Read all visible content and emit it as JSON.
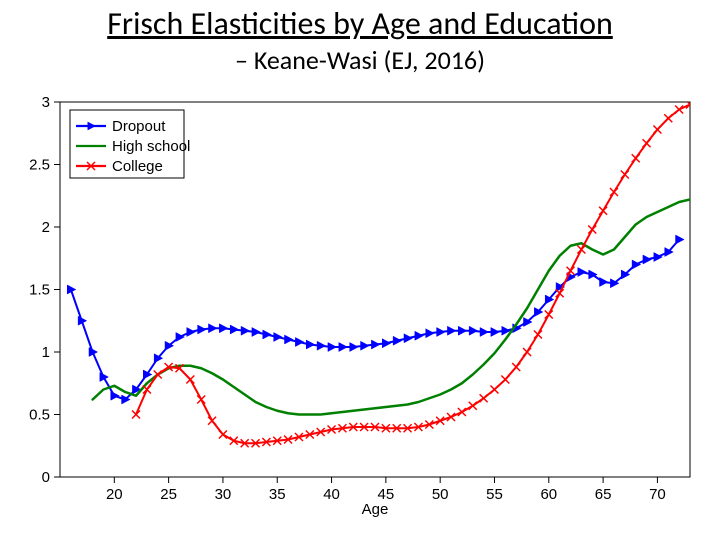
{
  "title": "Frisch Elasticities by Age and Education",
  "subtitle": "– Keane-Wasi (EJ, 2016)",
  "chart": {
    "type": "line",
    "background_color": "#ffffff",
    "axis_color": "#000000",
    "box_border": true,
    "xlabel": "Age",
    "label_fontsize": 15,
    "tick_fontsize": 15,
    "xlim": [
      15,
      73
    ],
    "xtick_start": 20,
    "xtick_step": 5,
    "xtick_end": 70,
    "ylim": [
      0,
      3
    ],
    "ytick_start": 0,
    "ytick_step": 0.5,
    "ytick_end": 3,
    "legend": {
      "position": "top-left",
      "border_color": "#000000",
      "background": "#ffffff",
      "items": [
        {
          "label": "Dropout",
          "color": "#0000ff",
          "marker": "triangle-right"
        },
        {
          "label": "High school",
          "color": "#008000",
          "marker": "none"
        },
        {
          "label": "College",
          "color": "#ff0000",
          "marker": "x"
        }
      ]
    },
    "series": [
      {
        "name": "Dropout",
        "color": "#0000ff",
        "line_width": 2,
        "marker": "triangle-right",
        "marker_size": 4.5,
        "x": [
          16,
          17,
          18,
          19,
          20,
          21,
          22,
          23,
          24,
          25,
          26,
          27,
          28,
          29,
          30,
          31,
          32,
          33,
          34,
          35,
          36,
          37,
          38,
          39,
          40,
          41,
          42,
          43,
          44,
          45,
          46,
          47,
          48,
          49,
          50,
          51,
          52,
          53,
          54,
          55,
          56,
          57,
          58,
          59,
          60,
          61,
          62,
          63,
          64,
          65,
          66,
          67,
          68,
          69,
          70,
          71,
          72
        ],
        "y": [
          1.5,
          1.25,
          1.0,
          0.8,
          0.65,
          0.62,
          0.7,
          0.82,
          0.95,
          1.05,
          1.12,
          1.16,
          1.18,
          1.19,
          1.19,
          1.18,
          1.17,
          1.16,
          1.14,
          1.12,
          1.1,
          1.08,
          1.06,
          1.05,
          1.04,
          1.04,
          1.04,
          1.05,
          1.06,
          1.07,
          1.09,
          1.11,
          1.13,
          1.15,
          1.16,
          1.17,
          1.17,
          1.17,
          1.16,
          1.16,
          1.17,
          1.19,
          1.24,
          1.32,
          1.42,
          1.52,
          1.6,
          1.64,
          1.62,
          1.56,
          1.55,
          1.62,
          1.7,
          1.74,
          1.76,
          1.8,
          1.9
        ]
      },
      {
        "name": "High school",
        "color": "#008000",
        "line_width": 2.5,
        "marker": "none",
        "marker_size": 0,
        "x": [
          18,
          19,
          20,
          21,
          22,
          23,
          24,
          25,
          26,
          27,
          28,
          29,
          30,
          31,
          32,
          33,
          34,
          35,
          36,
          37,
          38,
          39,
          40,
          41,
          42,
          43,
          44,
          45,
          46,
          47,
          48,
          49,
          50,
          51,
          52,
          53,
          54,
          55,
          56,
          57,
          58,
          59,
          60,
          61,
          62,
          63,
          64,
          65,
          66,
          67,
          68,
          69,
          70,
          71,
          72,
          73
        ],
        "y": [
          0.62,
          0.7,
          0.73,
          0.68,
          0.65,
          0.75,
          0.82,
          0.87,
          0.89,
          0.89,
          0.87,
          0.83,
          0.78,
          0.72,
          0.66,
          0.6,
          0.56,
          0.53,
          0.51,
          0.5,
          0.5,
          0.5,
          0.51,
          0.52,
          0.53,
          0.54,
          0.55,
          0.56,
          0.57,
          0.58,
          0.6,
          0.63,
          0.66,
          0.7,
          0.75,
          0.82,
          0.9,
          0.99,
          1.1,
          1.22,
          1.35,
          1.5,
          1.65,
          1.77,
          1.85,
          1.87,
          1.82,
          1.78,
          1.82,
          1.92,
          2.02,
          2.08,
          2.12,
          2.16,
          2.2,
          2.22
        ]
      },
      {
        "name": "College",
        "color": "#ff0000",
        "line_width": 2,
        "marker": "x",
        "marker_size": 4,
        "x": [
          22,
          23,
          24,
          25,
          26,
          27,
          28,
          29,
          30,
          31,
          32,
          33,
          34,
          35,
          36,
          37,
          38,
          39,
          40,
          41,
          42,
          43,
          44,
          45,
          46,
          47,
          48,
          49,
          50,
          51,
          52,
          53,
          54,
          55,
          56,
          57,
          58,
          59,
          60,
          61,
          62,
          63,
          64,
          65,
          66,
          67,
          68,
          69,
          70,
          71,
          72,
          73
        ],
        "y": [
          0.5,
          0.7,
          0.82,
          0.88,
          0.87,
          0.78,
          0.62,
          0.45,
          0.34,
          0.29,
          0.27,
          0.27,
          0.28,
          0.29,
          0.3,
          0.32,
          0.34,
          0.36,
          0.38,
          0.39,
          0.4,
          0.4,
          0.4,
          0.39,
          0.39,
          0.39,
          0.4,
          0.42,
          0.45,
          0.48,
          0.52,
          0.57,
          0.63,
          0.7,
          0.78,
          0.88,
          1.0,
          1.14,
          1.3,
          1.47,
          1.65,
          1.82,
          1.98,
          2.13,
          2.28,
          2.42,
          2.55,
          2.67,
          2.78,
          2.87,
          2.94,
          2.98
        ]
      }
    ]
  }
}
